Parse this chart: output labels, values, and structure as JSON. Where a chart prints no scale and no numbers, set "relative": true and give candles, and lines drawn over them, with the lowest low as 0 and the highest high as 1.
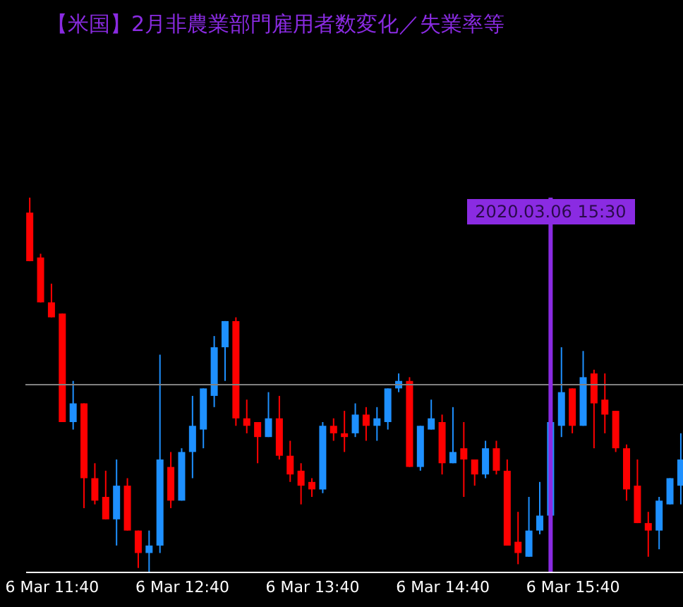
{
  "chart_data": {
    "type": "candlestick",
    "title": "【米国】2月非農業部門雇用者数変化／失業率等",
    "relative": true,
    "x": [
      "2020-03-06T11:30",
      "2020-03-06T11:35",
      "2020-03-06T11:40",
      "2020-03-06T11:45",
      "2020-03-06T11:50",
      "2020-03-06T11:55",
      "2020-03-06T12:00",
      "2020-03-06T12:05",
      "2020-03-06T12:10",
      "2020-03-06T12:15",
      "2020-03-06T12:20",
      "2020-03-06T12:25",
      "2020-03-06T12:30",
      "2020-03-06T12:35",
      "2020-03-06T12:40",
      "2020-03-06T12:45",
      "2020-03-06T12:50",
      "2020-03-06T12:55",
      "2020-03-06T13:00",
      "2020-03-06T13:05",
      "2020-03-06T13:10",
      "2020-03-06T13:15",
      "2020-03-06T13:20",
      "2020-03-06T13:25",
      "2020-03-06T13:30",
      "2020-03-06T13:35",
      "2020-03-06T13:40",
      "2020-03-06T13:45",
      "2020-03-06T13:50",
      "2020-03-06T13:55",
      "2020-03-06T14:00",
      "2020-03-06T14:05",
      "2020-03-06T14:10",
      "2020-03-06T14:15",
      "2020-03-06T14:20",
      "2020-03-06T14:25",
      "2020-03-06T14:30",
      "2020-03-06T14:35",
      "2020-03-06T14:40",
      "2020-03-06T14:45",
      "2020-03-06T14:50",
      "2020-03-06T14:55",
      "2020-03-06T15:00",
      "2020-03-06T15:05",
      "2020-03-06T15:10",
      "2020-03-06T15:15",
      "2020-03-06T15:20",
      "2020-03-06T15:25",
      "2020-03-06T15:30",
      "2020-03-06T15:35",
      "2020-03-06T15:40",
      "2020-03-06T15:45",
      "2020-03-06T15:50",
      "2020-03-06T15:55",
      "2020-03-06T16:00",
      "2020-03-06T16:05",
      "2020-03-06T16:10",
      "2020-03-06T16:15",
      "2020-03-06T16:20",
      "2020-03-06T16:25",
      "2020-03-06T16:30"
    ],
    "ohlc": [
      [
        0.96,
        1,
        0.83,
        0.83
      ],
      [
        0.84,
        0.85,
        0.72,
        0.72
      ],
      [
        0.72,
        0.77,
        0.68,
        0.68
      ],
      [
        0.69,
        0.69,
        0.4,
        0.4
      ],
      [
        0.4,
        0.51,
        0.38,
        0.45
      ],
      [
        0.45,
        0.45,
        0.17,
        0.25
      ],
      [
        0.25,
        0.29,
        0.18,
        0.19
      ],
      [
        0.2,
        0.27,
        0.14,
        0.14
      ],
      [
        0.14,
        0.3,
        0.07,
        0.23
      ],
      [
        0.23,
        0.25,
        0.11,
        0.11
      ],
      [
        0.11,
        0.11,
        0.01,
        0.05
      ],
      [
        0.05,
        0.11,
        0,
        0.07
      ],
      [
        0.07,
        0.58,
        0.05,
        0.3
      ],
      [
        0.28,
        0.32,
        0.17,
        0.19
      ],
      [
        0.19,
        0.33,
        0.19,
        0.32
      ],
      [
        0.32,
        0.47,
        0.25,
        0.39
      ],
      [
        0.38,
        0.49,
        0.33,
        0.49
      ],
      [
        0.47,
        0.63,
        0.44,
        0.6
      ],
      [
        0.6,
        0.67,
        0.51,
        0.67
      ],
      [
        0.67,
        0.68,
        0.39,
        0.41
      ],
      [
        0.41,
        0.46,
        0.37,
        0.39
      ],
      [
        0.4,
        0.4,
        0.29,
        0.36
      ],
      [
        0.36,
        0.48,
        0.36,
        0.41
      ],
      [
        0.41,
        0.47,
        0.3,
        0.31
      ],
      [
        0.31,
        0.35,
        0.24,
        0.26
      ],
      [
        0.27,
        0.29,
        0.18,
        0.23
      ],
      [
        0.24,
        0.25,
        0.2,
        0.22
      ],
      [
        0.22,
        0.4,
        0.21,
        0.39
      ],
      [
        0.39,
        0.41,
        0.35,
        0.37
      ],
      [
        0.37,
        0.43,
        0.32,
        0.36
      ],
      [
        0.37,
        0.45,
        0.36,
        0.42
      ],
      [
        0.42,
        0.44,
        0.35,
        0.39
      ],
      [
        0.39,
        0.44,
        0.35,
        0.41
      ],
      [
        0.4,
        0.49,
        0.38,
        0.49
      ],
      [
        0.49,
        0.53,
        0.48,
        0.51
      ],
      [
        0.51,
        0.52,
        0.28,
        0.28
      ],
      [
        0.28,
        0.39,
        0.27,
        0.39
      ],
      [
        0.38,
        0.46,
        0.38,
        0.41
      ],
      [
        0.4,
        0.42,
        0.26,
        0.29
      ],
      [
        0.29,
        0.44,
        0.29,
        0.32
      ],
      [
        0.33,
        0.4,
        0.2,
        0.3
      ],
      [
        0.3,
        0.3,
        0.23,
        0.26
      ],
      [
        0.26,
        0.35,
        0.25,
        0.33
      ],
      [
        0.33,
        0.35,
        0.26,
        0.27
      ],
      [
        0.27,
        0.3,
        0.07,
        0.07
      ],
      [
        0.08,
        0.16,
        0.02,
        0.05
      ],
      [
        0.04,
        0.2,
        0.04,
        0.11
      ],
      [
        0.11,
        0.24,
        0.1,
        0.15
      ],
      [
        0.15,
        0.4,
        0.15,
        0.4
      ],
      [
        0.39,
        0.6,
        0.36,
        0.48
      ],
      [
        0.49,
        0.49,
        0.37,
        0.39
      ],
      [
        0.39,
        0.59,
        0.39,
        0.52
      ],
      [
        0.53,
        0.54,
        0.33,
        0.45
      ],
      [
        0.46,
        0.53,
        0.37,
        0.42
      ],
      [
        0.43,
        0.43,
        0.32,
        0.33
      ],
      [
        0.33,
        0.34,
        0.19,
        0.22
      ],
      [
        0.23,
        0.3,
        0.13,
        0.13
      ],
      [
        0.13,
        0.16,
        0.04,
        0.11
      ],
      [
        0.11,
        0.2,
        0.06,
        0.19
      ],
      [
        0.18,
        0.25,
        0.18,
        0.25
      ],
      [
        0.23,
        0.37,
        0.18,
        0.3
      ]
    ],
    "colors": [
      "#ff0000",
      "#ff0000",
      "#ff0000",
      "#ff0000",
      "#1e90ff",
      "#ff0000",
      "#ff0000",
      "#ff0000",
      "#1e90ff",
      "#ff0000",
      "#ff0000",
      "#1e90ff",
      "#1e90ff",
      "#ff0000",
      "#1e90ff",
      "#1e90ff",
      "#1e90ff",
      "#1e90ff",
      "#1e90ff",
      "#ff0000",
      "#ff0000",
      "#ff0000",
      "#1e90ff",
      "#ff0000",
      "#ff0000",
      "#ff0000",
      "#ff0000",
      "#1e90ff",
      "#ff0000",
      "#ff0000",
      "#1e90ff",
      "#ff0000",
      "#1e90ff",
      "#1e90ff",
      "#1e90ff",
      "#ff0000",
      "#1e90ff",
      "#1e90ff",
      "#ff0000",
      "#1e90ff",
      "#ff0000",
      "#ff0000",
      "#1e90ff",
      "#ff0000",
      "#ff0000",
      "#ff0000",
      "#1e90ff",
      "#1e90ff",
      "#1e90ff",
      "#1e90ff",
      "#ff0000",
      "#1e90ff",
      "#ff0000",
      "#ff0000",
      "#ff0000",
      "#ff0000",
      "#ff0000",
      "#ff0000",
      "#1e90ff",
      "#1e90ff",
      "#1e90ff"
    ],
    "xlim": [
      "2020-03-06T11:28",
      "2020-03-06T16:31"
    ],
    "xticks": [
      {
        "value": "2020-03-06T11:40",
        "label": "6 Mar 11:40"
      },
      {
        "value": "2020-03-06T12:40",
        "label": "6 Mar 12:40"
      },
      {
        "value": "2020-03-06T13:40",
        "label": "6 Mar 13:40"
      },
      {
        "value": "2020-03-06T14:40",
        "label": "6 Mar 14:40"
      },
      {
        "value": "2020-03-06T15:40",
        "label": "6 Mar 15:40"
      }
    ],
    "ref_lines": [
      {
        "axis": "y",
        "value": 0.5,
        "label": null,
        "color": "#808080"
      },
      {
        "axis": "x",
        "value": "2020-03-06T15:30",
        "label": "2020.03.06 15:30",
        "color": "#8a2be2"
      }
    ]
  }
}
